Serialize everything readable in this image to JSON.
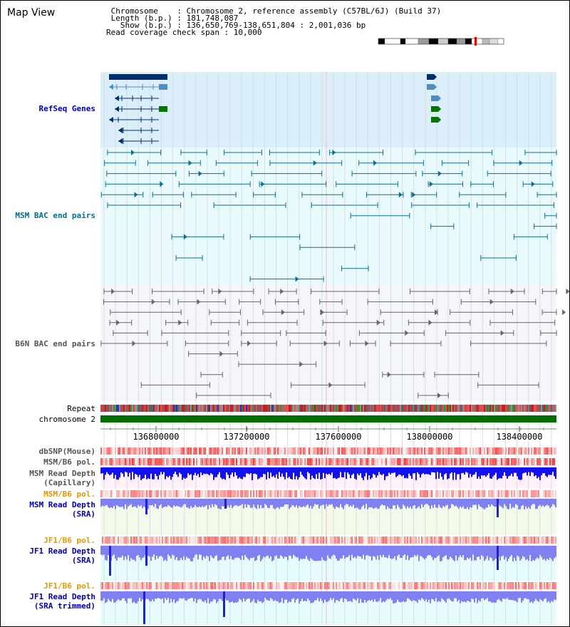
{
  "page": {
    "title": "Map View"
  },
  "header": {
    "lines": [
      " Chromosome    : Chromosome 2, reference assembly (C57BL/6J) (Build 37)",
      " Length (b.p.) : 181,748,087",
      "   Show (b.p.) : 136,650,769-138,651,804 : 2,001,036 bp",
      "Read coverage check span : 10,000"
    ]
  },
  "tracks": {
    "refseq": "RefSeq Genes",
    "msm_bac": "MSM BAC end pairs",
    "b6n_bac": "B6N BAC end pairs",
    "repeat": "Repeat",
    "chromosome": "chromosome 2",
    "dbsnp": "dbSNP(Mouse)",
    "msm_b6_pol_1": "MSM/B6 pol.",
    "msm_depth_cap_1": "MSM Read Depth",
    "msm_depth_cap_2": "(Capillary)",
    "msm_b6_pol_2": "MSM/B6 pol.",
    "msm_depth_sra_1": "MSM Read Depth",
    "msm_depth_sra_2": "(SRA)",
    "jf1_pol_1": "JF1/B6 pol.",
    "jf1_depth_1": "JF1 Read Depth",
    "jf1_depth_2": "(SRA)",
    "jf1_pol_2": "JF1/B6 pol.",
    "jf1_trim_1": "JF1 Read Depth",
    "jf1_trim_2": "(SRA trimmed)"
  },
  "axis": {
    "ticks": [
      "136800000",
      "137200000",
      "137600000",
      "138000000",
      "138400000"
    ]
  },
  "colors": {
    "refseq_bg": "#dbeffa",
    "msm_bg": "#e8fafb",
    "b6n_bg": "#f5f6fa",
    "depth_cap_bg": "#fff0fa",
    "depth_sra_bg": "#f2fbea",
    "jf1_bg": "#e6fbfb",
    "label_blue": "#0000aa",
    "label_teal": "#006e8c",
    "label_gray": "#555555",
    "label_orange": "#dd9900",
    "gene_dark": "#002f6c",
    "gene_mid": "#4f8fbf",
    "gene_green": "#007800",
    "bac_teal": "#106f8f",
    "bac_gray": "#666666",
    "depth_blue": "#2020e0",
    "depth_light": "#8080f0"
  }
}
